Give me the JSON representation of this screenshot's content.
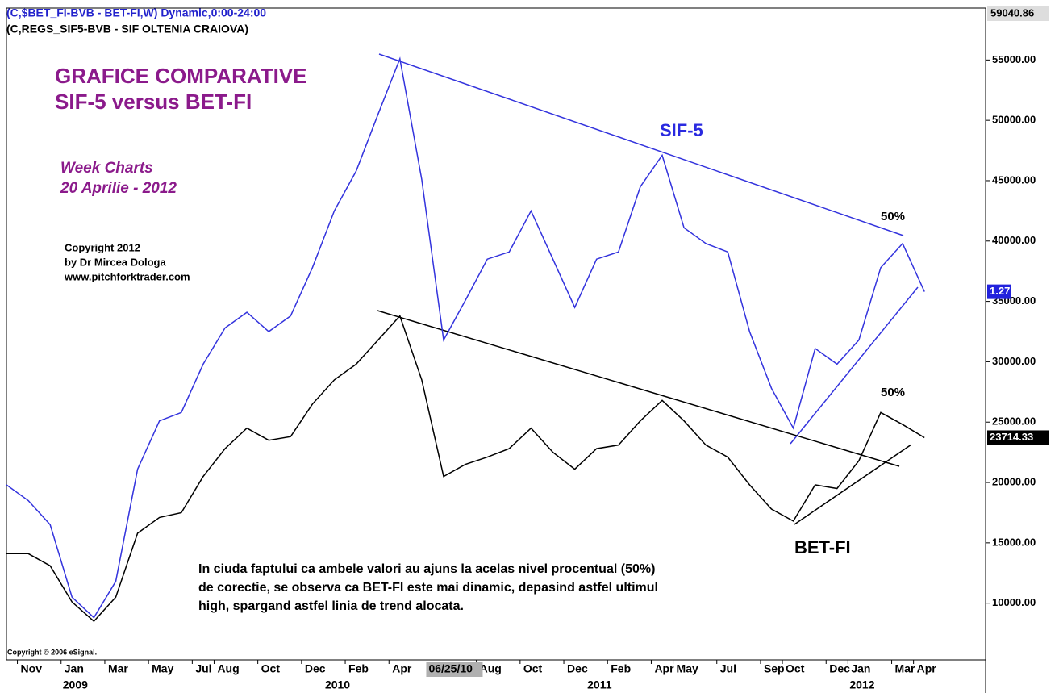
{
  "chart_data": {
    "type": "line",
    "header": [
      "(C,$BET_FI-BVB - BET-FI,W) Dynamic,0:00-24:00",
      "(C,REGS_SIF5-BVB - SIF OLTENIA CRAIOVA)"
    ],
    "title": "GRAFICE COMPARATIVE",
    "subtitle": "SIF-5 versus BET-FI",
    "annotations": [
      "Week Charts",
      "20 Aprilie - 2012",
      "Copyright 2012",
      "by Dr Mircea Dologa",
      "www.pitchforktrader.com",
      "SIF-5",
      "BET-FI",
      "50%",
      "50%",
      "In ciuda faptului ca ambele valori au ajuns la acelas nivel procentual (50%)",
      "de corectie, se observa ca BET-FI este mai dinamic, depasind astfel ultimul",
      "high, spargand astfel linia de trend alocata.",
      "Copyright © 2006 eSignal."
    ],
    "x": [
      "2008-10",
      "2008-11",
      "2008-12",
      "2009-01",
      "2009-02",
      "2009-03",
      "2009-04",
      "2009-05",
      "2009-06",
      "2009-07",
      "2009-08",
      "2009-09",
      "2009-10",
      "2009-11",
      "2009-12",
      "2010-01",
      "2010-02",
      "2010-03",
      "2010-04",
      "2010-05",
      "2010-06",
      "2010-07",
      "2010-08",
      "2010-09",
      "2010-10",
      "2010-11",
      "2010-12",
      "2011-01",
      "2011-02",
      "2011-03",
      "2011-04",
      "2011-05",
      "2011-06",
      "2011-07",
      "2011-08",
      "2011-09",
      "2011-10",
      "2011-11",
      "2011-12",
      "2012-01",
      "2012-02",
      "2012-03",
      "2012-04"
    ],
    "series": [
      {
        "name": "BET-FI",
        "color": "#000000",
        "values": [
          14100,
          14100,
          13100,
          10100,
          8500,
          10500,
          15800,
          17100,
          17500,
          20500,
          22800,
          24500,
          23500,
          23800,
          26500,
          28500,
          29800,
          31800,
          33800,
          28500,
          20500,
          21500,
          22100,
          22800,
          24500,
          22500,
          21100,
          22800,
          23100,
          25100,
          26800,
          25100,
          23100,
          22100,
          19800,
          17800,
          16800,
          19800,
          19500,
          21800,
          25800,
          24800,
          23714.33
        ]
      },
      {
        "name": "SIF-5",
        "color": "#3333dd",
        "values": [
          19800,
          18500,
          16500,
          10500,
          8800,
          11800,
          21100,
          25100,
          25800,
          29800,
          32800,
          34100,
          32500,
          33800,
          37800,
          42500,
          45800,
          50500,
          55100,
          45100,
          31800,
          35100,
          38500,
          39100,
          42500,
          38500,
          34500,
          38500,
          39100,
          44500,
          47100,
          41100,
          39800,
          39100,
          32500,
          27800,
          24500,
          31100,
          29800,
          31800,
          37800,
          39800,
          35800
        ]
      }
    ],
    "last_tags": [
      "23714.33",
      "1.27"
    ],
    "top_tag": 59040.86,
    "ylim": [
      5300,
      59300
    ],
    "yticks": [
      {
        "value": 10000,
        "label": "10000.00"
      },
      {
        "value": 15000,
        "label": "15000.00"
      },
      {
        "value": 20000,
        "label": "20000.00"
      },
      {
        "value": 25000,
        "label": "25000.00"
      },
      {
        "value": 30000,
        "label": "30000.00"
      },
      {
        "value": 35000,
        "label": "35000.00"
      },
      {
        "value": 40000,
        "label": "40000.00"
      },
      {
        "value": 45000,
        "label": "45000.00"
      },
      {
        "value": 50000,
        "label": "50000.00"
      },
      {
        "value": 55000,
        "label": "55000.00"
      }
    ],
    "xticks": [
      {
        "value": "2008-11",
        "label": "Nov"
      },
      {
        "value": "2009-01",
        "label": "Jan"
      },
      {
        "value": "2009-03",
        "label": "Mar"
      },
      {
        "value": "2009-05",
        "label": "May"
      },
      {
        "value": "2009-07",
        "label": "Jul"
      },
      {
        "value": "2009-08",
        "label": "Aug"
      },
      {
        "value": "2009-10",
        "label": "Oct"
      },
      {
        "value": "2009-12",
        "label": "Dec"
      },
      {
        "value": "2010-02",
        "label": "Feb"
      },
      {
        "value": "2010-04",
        "label": "Apr"
      },
      {
        "value": "2010-08",
        "label": "Aug"
      },
      {
        "value": "2010-10",
        "label": "Oct"
      },
      {
        "value": "2010-12",
        "label": "Dec"
      },
      {
        "value": "2011-02",
        "label": "Feb"
      },
      {
        "value": "2011-04",
        "label": "Apr"
      },
      {
        "value": "2011-05",
        "label": "May"
      },
      {
        "value": "2011-07",
        "label": "Jul"
      },
      {
        "value": "2011-09",
        "label": "Sep"
      },
      {
        "value": "2011-10",
        "label": "Oct"
      },
      {
        "value": "2011-12",
        "label": "Dec"
      },
      {
        "value": "2012-01",
        "label": "Jan"
      },
      {
        "value": "2012-03",
        "label": "Mar"
      },
      {
        "value": "2012-04",
        "label": "Apr"
      }
    ],
    "year_labels": [
      {
        "value": "2009-01",
        "label": "2009"
      },
      {
        "value": "2010-01",
        "label": "2010"
      },
      {
        "value": "2011-01",
        "label": "2011"
      },
      {
        "value": "2012-01",
        "label": "2012"
      }
    ],
    "cursor": {
      "value": "2010-06",
      "label": "06/25/10"
    }
  }
}
